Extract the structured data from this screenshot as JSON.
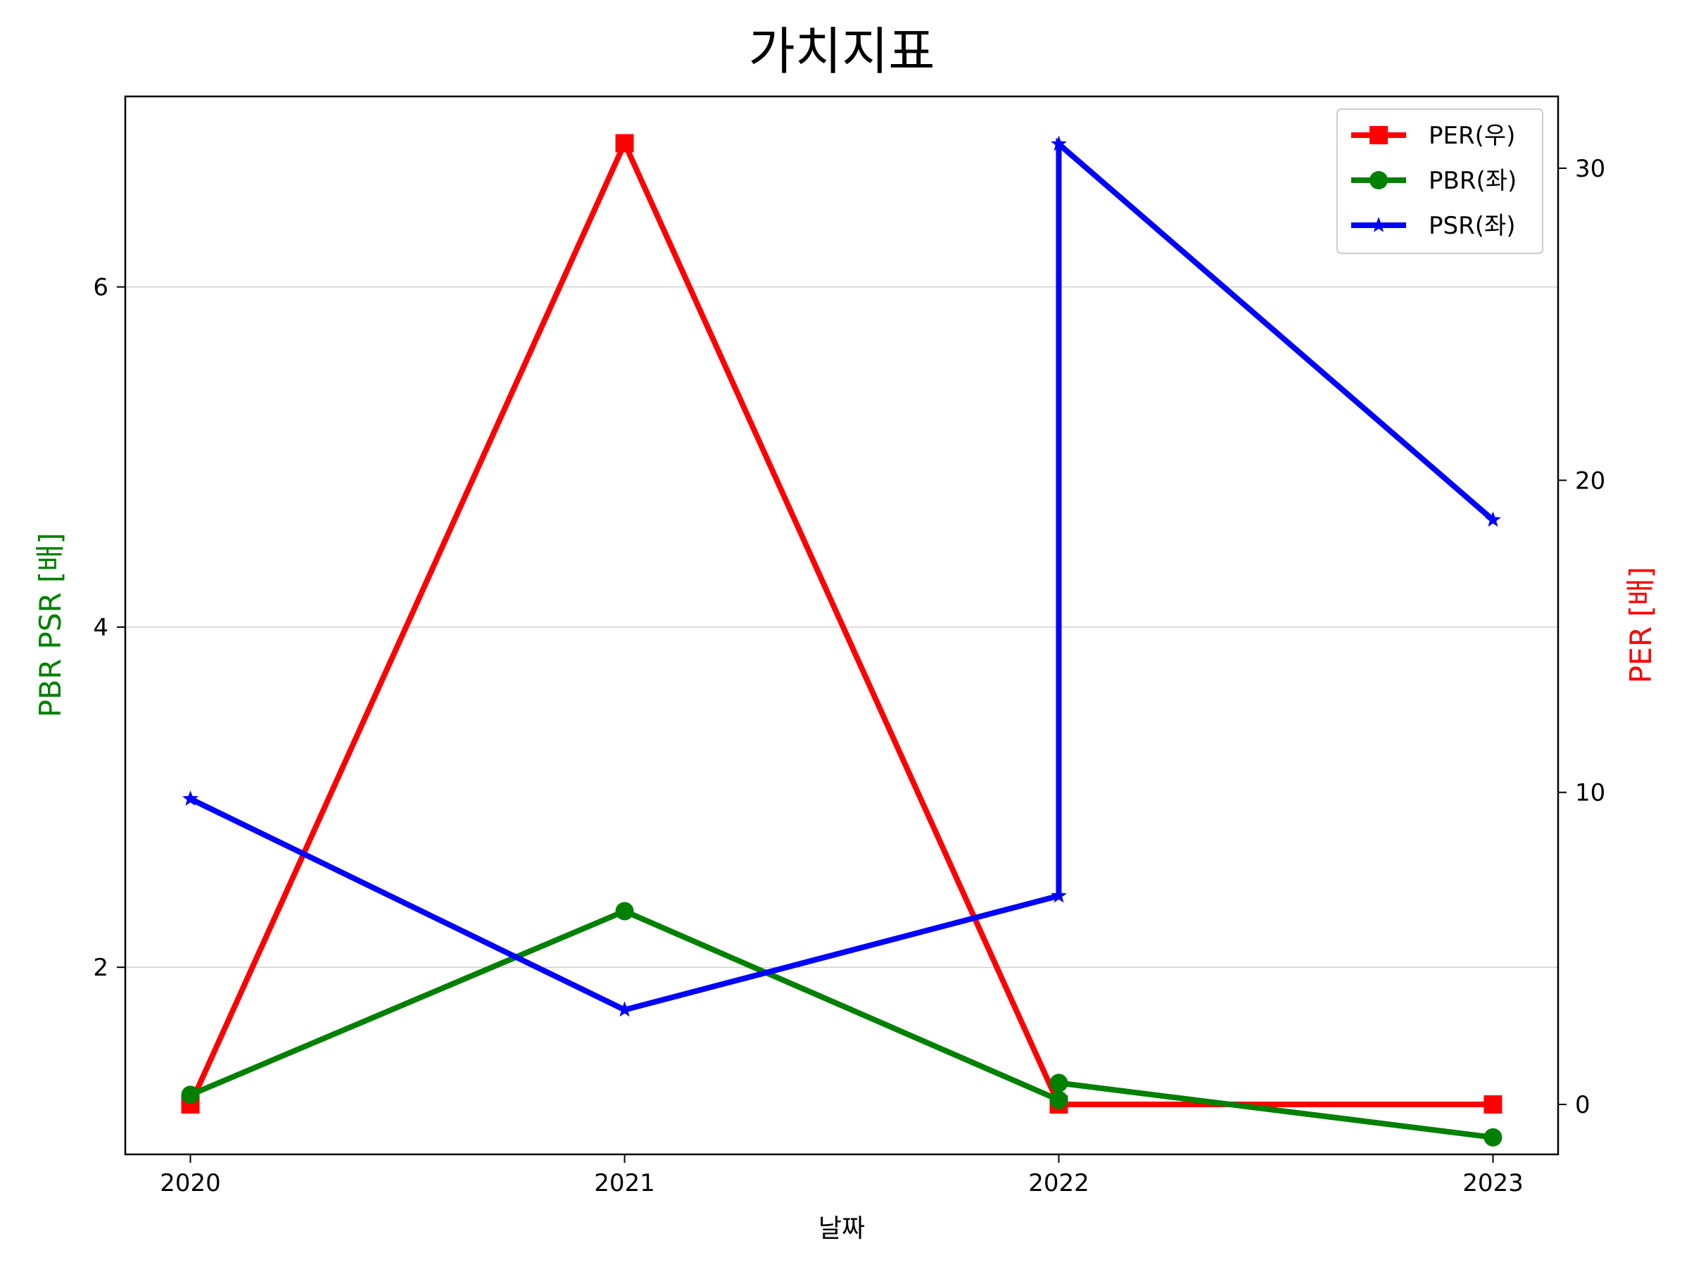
{
  "chart_data": {
    "type": "line",
    "title": "가치지표",
    "xlabel": "날짜",
    "ylabel_left": "PBR PSR [배]",
    "ylabel_right": "PER [배]",
    "xlim": [
      2019.85,
      2023.15
    ],
    "ylim_left": [
      0.9,
      7.12
    ],
    "ylim_right": [
      -1.6,
      32.3
    ],
    "x_ticks": [
      {
        "value": 2020,
        "label": "2020"
      },
      {
        "value": 2021,
        "label": "2021"
      },
      {
        "value": 2022,
        "label": "2022"
      },
      {
        "value": 2023,
        "label": "2023"
      }
    ],
    "y_ticks_left": [
      {
        "value": 2,
        "label": "2"
      },
      {
        "value": 4,
        "label": "4"
      },
      {
        "value": 6,
        "label": "6"
      }
    ],
    "y_ticks_right": [
      {
        "value": 0,
        "label": "0"
      },
      {
        "value": 10,
        "label": "10"
      },
      {
        "value": 20,
        "label": "20"
      },
      {
        "value": 30,
        "label": "30"
      }
    ],
    "grid": "horizontal (left axis)",
    "legend_position": "top-right",
    "colors": {
      "per": "#ff0000",
      "pbr": "#008000",
      "psr": "#0000ff",
      "pbr_label": "#008000",
      "per_label": "#ff0000"
    },
    "series": [
      {
        "name": "PER(우)",
        "axis": "right",
        "marker": "square",
        "color": "#ff0000",
        "points": [
          [
            2020,
            0
          ],
          [
            2021,
            30.8
          ],
          [
            2022,
            0
          ],
          [
            2023,
            0
          ]
        ]
      },
      {
        "name": "PBR(좌)",
        "axis": "left",
        "marker": "circle",
        "color": "#008000",
        "points": [
          [
            2020,
            1.25
          ],
          [
            2021,
            2.33
          ],
          [
            2022,
            1.22
          ],
          [
            2022,
            1.32
          ],
          [
            2023,
            1.0
          ]
        ]
      },
      {
        "name": "PSR(좌)",
        "axis": "left",
        "marker": "star",
        "color": "#0000ff",
        "points": [
          [
            2020,
            2.99
          ],
          [
            2021,
            1.75
          ],
          [
            2022,
            2.42
          ],
          [
            2022,
            6.84
          ],
          [
            2023,
            4.63
          ]
        ]
      }
    ]
  }
}
